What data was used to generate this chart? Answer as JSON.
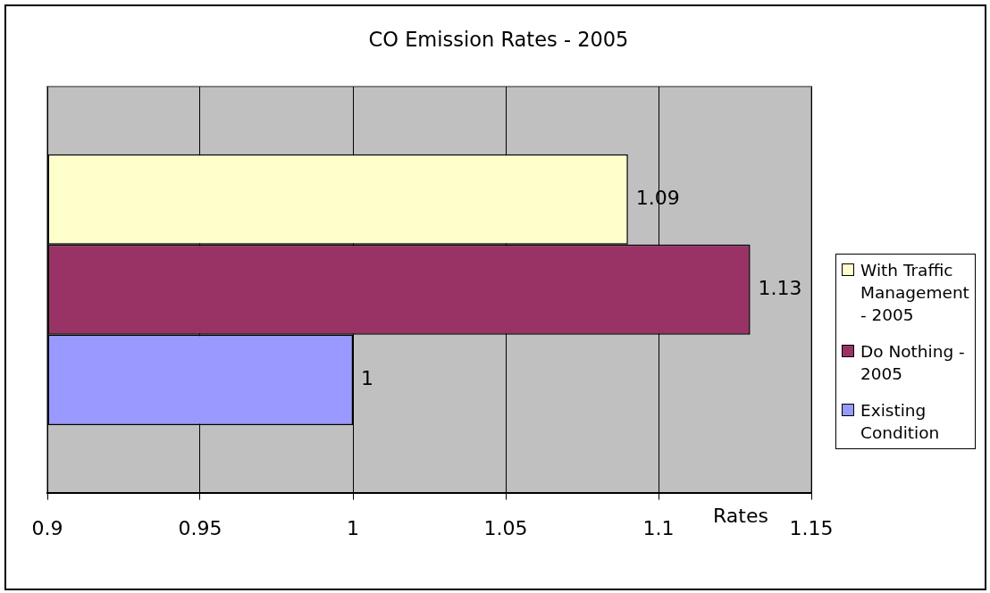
{
  "chart_data": {
    "type": "bar",
    "orientation": "horizontal",
    "title": "CO Emission Rates - 2005",
    "xlabel": "Rates",
    "categories": [
      null
    ],
    "series": [
      {
        "name": "With Traffic Management - 2005",
        "color": "#ffffcc",
        "values": [
          1.09
        ]
      },
      {
        "name": "Do Nothing - 2005",
        "color": "#993366",
        "values": [
          1.13
        ]
      },
      {
        "name": "Existing Condition",
        "color": "#9999ff",
        "values": [
          1
        ]
      }
    ],
    "xlim": [
      0.9,
      1.15
    ],
    "xticks": [
      0.9,
      0.95,
      1,
      1.05,
      1.1,
      1.15
    ],
    "grid": "x",
    "legend": "right",
    "data_labels": true
  }
}
